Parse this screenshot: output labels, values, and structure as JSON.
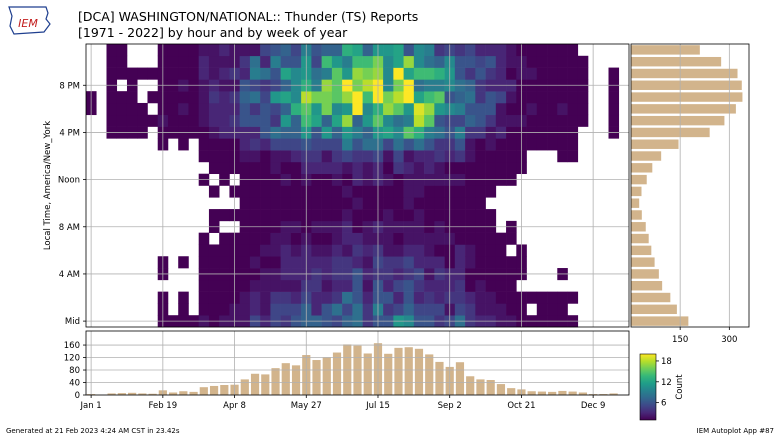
{
  "header": {
    "logo_text": "IEM",
    "title_line1": "[DCA] WASHINGTON/NATIONAL:: Thunder (TS) Reports",
    "title_line2": "[1971 - 2022] by hour and by week of year"
  },
  "footer": {
    "generated": "Generated at 21 Feb 2023 4:24 AM CST in 23.42s",
    "app": "IEM Autoplot App #87"
  },
  "colors": {
    "bar": "#d2b48c",
    "colormap": [
      "#440154",
      "#482878",
      "#3e4989",
      "#31688e",
      "#26828e",
      "#1f9e89",
      "#35b779",
      "#6ece58",
      "#b5de2b",
      "#fde725"
    ]
  },
  "chart_data": [
    {
      "type": "heatmap",
      "ylabel": "Local Time, America/New_York",
      "x_tick_labels": [
        "Jan 1",
        "Feb 19",
        "Apr 8",
        "May 27",
        "Jul 15",
        "Sep 2",
        "Oct 21",
        "Dec 9"
      ],
      "x_tick_weeks": [
        0,
        7,
        14,
        21,
        28,
        35,
        42,
        49
      ],
      "y_tick_labels": [
        "Mid",
        "4 AM",
        "8 AM",
        "Noon",
        "4 PM",
        "8 PM"
      ],
      "y_tick_hours": [
        0,
        4,
        8,
        12,
        16,
        20
      ],
      "weeks": 53,
      "hours": 24,
      "color_range": [
        1,
        20
      ],
      "colorbar_label": "Count",
      "colorbar_ticks": [
        6,
        12,
        18
      ]
    },
    {
      "type": "bar",
      "orientation": "vertical",
      "description_axis": "week of year",
      "y_ticks": [
        0,
        40,
        80,
        120,
        160
      ],
      "ylim": [
        0,
        205
      ],
      "values": [
        3,
        0,
        5,
        6,
        7,
        5,
        4,
        15,
        8,
        12,
        10,
        25,
        29,
        32,
        33,
        50,
        68,
        66,
        86,
        102,
        95,
        128,
        112,
        121,
        136,
        162,
        158,
        133,
        166,
        132,
        151,
        153,
        148,
        130,
        106,
        90,
        105,
        60,
        50,
        48,
        35,
        22,
        18,
        12,
        11,
        10,
        13,
        11,
        8,
        3,
        3,
        5,
        0
      ]
    },
    {
      "type": "bar",
      "orientation": "horizontal",
      "description_axis": "hour of day",
      "x_ticks": [
        150,
        300
      ],
      "xlim": [
        0,
        360
      ],
      "values": [
        175,
        140,
        120,
        95,
        85,
        72,
        62,
        54,
        45,
        33,
        25,
        32,
        48,
        65,
        92,
        145,
        240,
        285,
        320,
        340,
        338,
        325,
        275,
        210
      ]
    }
  ]
}
